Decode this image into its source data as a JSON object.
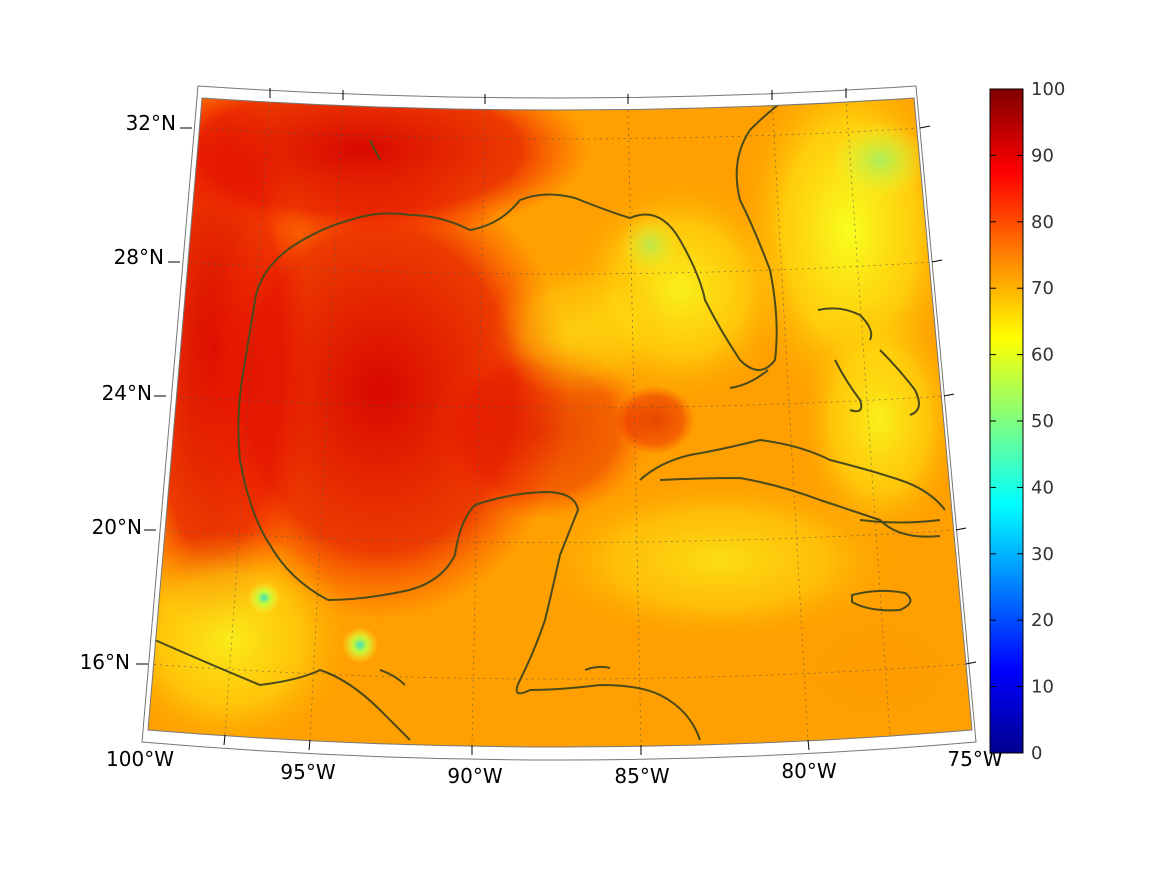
{
  "map": {
    "region": "Gulf of Mexico and Caribbean",
    "projection": "conic",
    "field_range": [
      0,
      100
    ],
    "colormap": "jet",
    "land_color": "#4a4a1a",
    "lat_labels": [
      "32°N",
      "28°N",
      "24°N",
      "20°N",
      "16°N"
    ],
    "lon_labels": [
      "100°W",
      "95°W",
      "90°W",
      "85°W",
      "80°W",
      "75°W"
    ]
  },
  "colorbar": {
    "ticks": [
      "100",
      "90",
      "80",
      "70",
      "60",
      "50",
      "40",
      "30",
      "20",
      "10",
      "0"
    ],
    "min": 0,
    "max": 100
  }
}
